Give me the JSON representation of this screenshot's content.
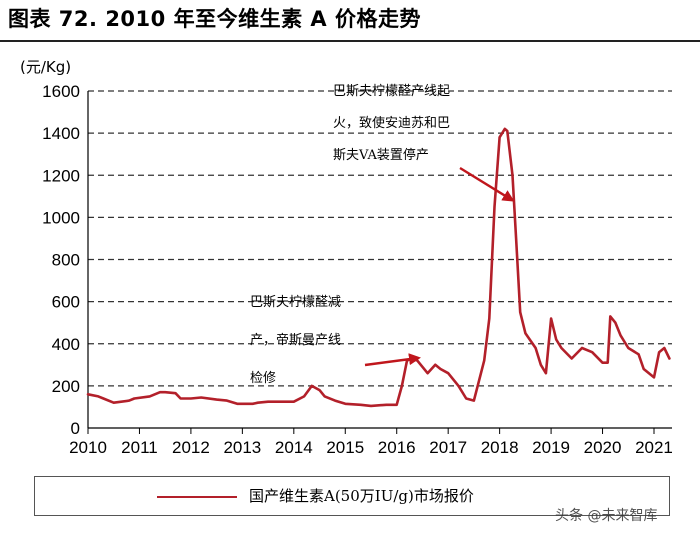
{
  "figure": {
    "title": "图表 72. 2010 年至今维生素 A 价格走势",
    "watermark": "头条 @未来智库"
  },
  "colors": {
    "series": "#b3202a",
    "arrow": "#c0161c",
    "grid": "#333333"
  },
  "chart_data": {
    "type": "line",
    "ylabel": "(元/Kg)",
    "xlabel": "",
    "xlim": [
      2010,
      2021.35
    ],
    "ylim": [
      0,
      1600
    ],
    "yticks": [
      0,
      200,
      400,
      600,
      800,
      1000,
      1200,
      1400,
      1600
    ],
    "xticks": [
      2010,
      2011,
      2012,
      2013,
      2014,
      2015,
      2016,
      2017,
      2018,
      2019,
      2020,
      2021
    ],
    "grid": "horizontal-dashed",
    "legend": "bottom",
    "series": [
      {
        "name": "国产维生素A(50万IU/g)市场报价",
        "x": [
          2010.0,
          2010.2,
          2010.3,
          2010.5,
          2010.8,
          2010.9,
          2011.2,
          2011.4,
          2011.5,
          2011.7,
          2011.8,
          2012.0,
          2012.2,
          2012.5,
          2012.7,
          2012.9,
          2013.2,
          2013.3,
          2013.5,
          2013.8,
          2014.0,
          2014.2,
          2014.35,
          2014.5,
          2014.6,
          2014.8,
          2015.0,
          2015.3,
          2015.5,
          2015.8,
          2016.0,
          2016.1,
          2016.2,
          2016.3,
          2016.4,
          2016.6,
          2016.75,
          2016.85,
          2017.0,
          2017.2,
          2017.35,
          2017.5,
          2017.7,
          2017.8,
          2017.9,
          2018.0,
          2018.1,
          2018.15,
          2018.25,
          2018.32,
          2018.4,
          2018.5,
          2018.7,
          2018.8,
          2018.9,
          2019.0,
          2019.1,
          2019.2,
          2019.4,
          2019.6,
          2019.8,
          2020.0,
          2020.1,
          2020.15,
          2020.25,
          2020.35,
          2020.5,
          2020.7,
          2020.8,
          2021.0,
          2021.1,
          2021.2,
          2021.3
        ],
        "values": [
          160,
          150,
          140,
          120,
          130,
          140,
          150,
          170,
          170,
          165,
          140,
          140,
          145,
          135,
          130,
          115,
          115,
          120,
          125,
          125,
          125,
          150,
          200,
          180,
          150,
          130,
          115,
          110,
          105,
          110,
          110,
          200,
          320,
          330,
          320,
          260,
          300,
          280,
          260,
          200,
          140,
          130,
          320,
          520,
          1050,
          1380,
          1420,
          1410,
          1200,
          900,
          550,
          450,
          380,
          300,
          260,
          520,
          420,
          380,
          330,
          380,
          360,
          310,
          310,
          530,
          500,
          440,
          380,
          350,
          280,
          240,
          360,
          380,
          330
        ]
      }
    ],
    "annotations": [
      {
        "text": [
          "巴斯夫柠檬醛产线起",
          "火，致使安迪苏和巴",
          "斯夫VA装置停产"
        ],
        "target": {
          "x": 2018.3,
          "y": 1050
        }
      },
      {
        "text": [
          "巴斯夫柠檬醛减",
          "产，帝斯曼产线",
          "检修"
        ],
        "target": {
          "x": 2016.3,
          "y": 320
        }
      }
    ]
  }
}
